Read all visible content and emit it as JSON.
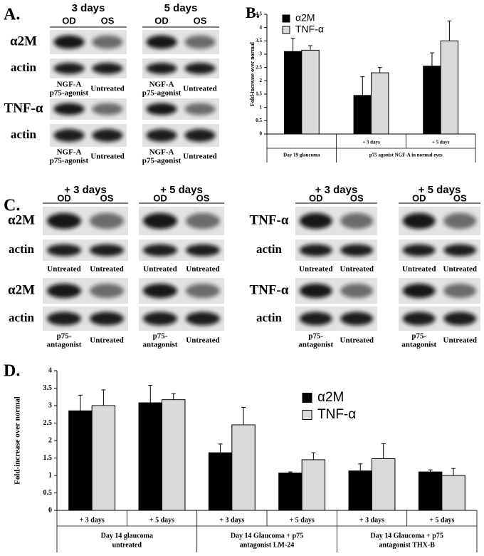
{
  "panel_a": {
    "label": "A.",
    "columns": [
      "3 days",
      "5 days"
    ],
    "lanes": [
      "OD",
      "OS",
      "OD",
      "OS"
    ],
    "markers": [
      "α2M",
      "actin",
      "TNF-α",
      "actin"
    ],
    "captions": [
      [
        [
          "NGF-A",
          "p75-agonist"
        ],
        [
          "Untreated"
        ],
        [
          "NGF-A",
          "p75-agonist"
        ],
        [
          "Untreated"
        ]
      ],
      [
        [
          "NGF-A",
          "p75-agonist"
        ],
        [
          "Untreated"
        ],
        [
          "NGF-A",
          "p75-agonist"
        ],
        [
          "Untreated"
        ]
      ]
    ]
  },
  "panel_b_label": "B.",
  "panel_c": {
    "label": "C.",
    "left": {
      "columns": [
        "+ 3 days",
        "+ 5 days"
      ],
      "lanes": [
        "OD",
        "OS",
        "OD",
        "OS"
      ],
      "markers": [
        "α2M",
        "actin",
        "α2M",
        "actin"
      ],
      "captions": [
        [
          [
            "Untreated"
          ],
          [
            "Untreated"
          ],
          [
            "Untreated"
          ],
          [
            "Untreated"
          ]
        ],
        [
          [
            "p75-",
            "antagonist"
          ],
          [
            "Untreated"
          ],
          [
            "p75-",
            "antagonist"
          ],
          [
            "Untreated"
          ]
        ]
      ]
    },
    "right": {
      "columns": [
        "+ 3 days",
        "+ 5 days"
      ],
      "lanes": [
        "OD",
        "OS",
        "OD",
        "OS"
      ],
      "markers": [
        "TNF-α",
        "actin",
        "TNF-α",
        "actin"
      ],
      "captions": [
        [
          [
            "Untreated"
          ],
          [
            "Untreated"
          ],
          [
            "Untreated"
          ],
          [
            "Untreated"
          ]
        ],
        [
          [
            "p75-",
            "antagonist"
          ],
          [
            "Untreated"
          ],
          [
            "p75-",
            "antagonist"
          ],
          [
            "Untreated"
          ]
        ]
      ]
    }
  },
  "panel_d_label": "D.",
  "chart_data": [
    {
      "type": "bar",
      "y_label": "Fold-increase over normal",
      "categories": [
        null,
        "+ 3 days",
        "+ 5 days"
      ],
      "group_labels": [
        {
          "label": [
            "Day 19 glaucoma"
          ],
          "span": 1
        },
        {
          "label": [
            "p75 agonist NGF-A  in normal eyes"
          ],
          "span": 2
        }
      ],
      "series": [
        {
          "name": "α2M",
          "color": "#000000",
          "values": [
            3.1,
            1.45,
            2.55
          ],
          "errors": [
            0.5,
            0.7,
            0.5
          ]
        },
        {
          "name": "TNF-α",
          "color": "#d9d9d9",
          "values": [
            3.15,
            2.3,
            3.5
          ],
          "errors": [
            0.17,
            0.2,
            0.75
          ]
        }
      ],
      "ylim": [
        0,
        4.5
      ],
      "yticks": [
        0,
        0.5,
        1,
        1.5,
        2,
        2.5,
        3,
        3.5,
        4,
        4.5
      ],
      "grid": false,
      "legend": "upper left"
    },
    {
      "type": "bar",
      "y_label": "Fold-increase over normal",
      "categories": [
        "+ 3 days",
        "+ 5 days",
        "+ 3 days",
        "+ 5 days",
        "+ 3 days",
        "+ 5 days"
      ],
      "group_labels": [
        {
          "label": [
            "Day 14 glaucoma",
            "untreated"
          ],
          "span": 2
        },
        {
          "label": [
            "Day 14 Glaucoma + p75",
            "antagonist LM-24"
          ],
          "span": 2
        },
        {
          "label": [
            "Day 14 Glaucoma + p75",
            "antagonist THX-B"
          ],
          "span": 2
        }
      ],
      "series": [
        {
          "name": "α2M",
          "color": "#000000",
          "values": [
            2.85,
            3.08,
            1.65,
            1.07,
            1.13,
            1.1
          ],
          "errors": [
            0.45,
            0.5,
            0.25,
            0.03,
            0.2,
            0.06
          ]
        },
        {
          "name": "TNF-α",
          "color": "#d9d9d9",
          "values": [
            3.0,
            3.17,
            2.45,
            1.45,
            1.48,
            1.0
          ],
          "errors": [
            0.45,
            0.17,
            0.5,
            0.2,
            0.43,
            0.2
          ]
        }
      ],
      "ylim": [
        0,
        4
      ],
      "yticks": [
        0,
        0.5,
        1,
        1.5,
        2,
        2.5,
        3,
        3.5,
        4
      ],
      "grid": false,
      "legend": "upper right"
    }
  ]
}
